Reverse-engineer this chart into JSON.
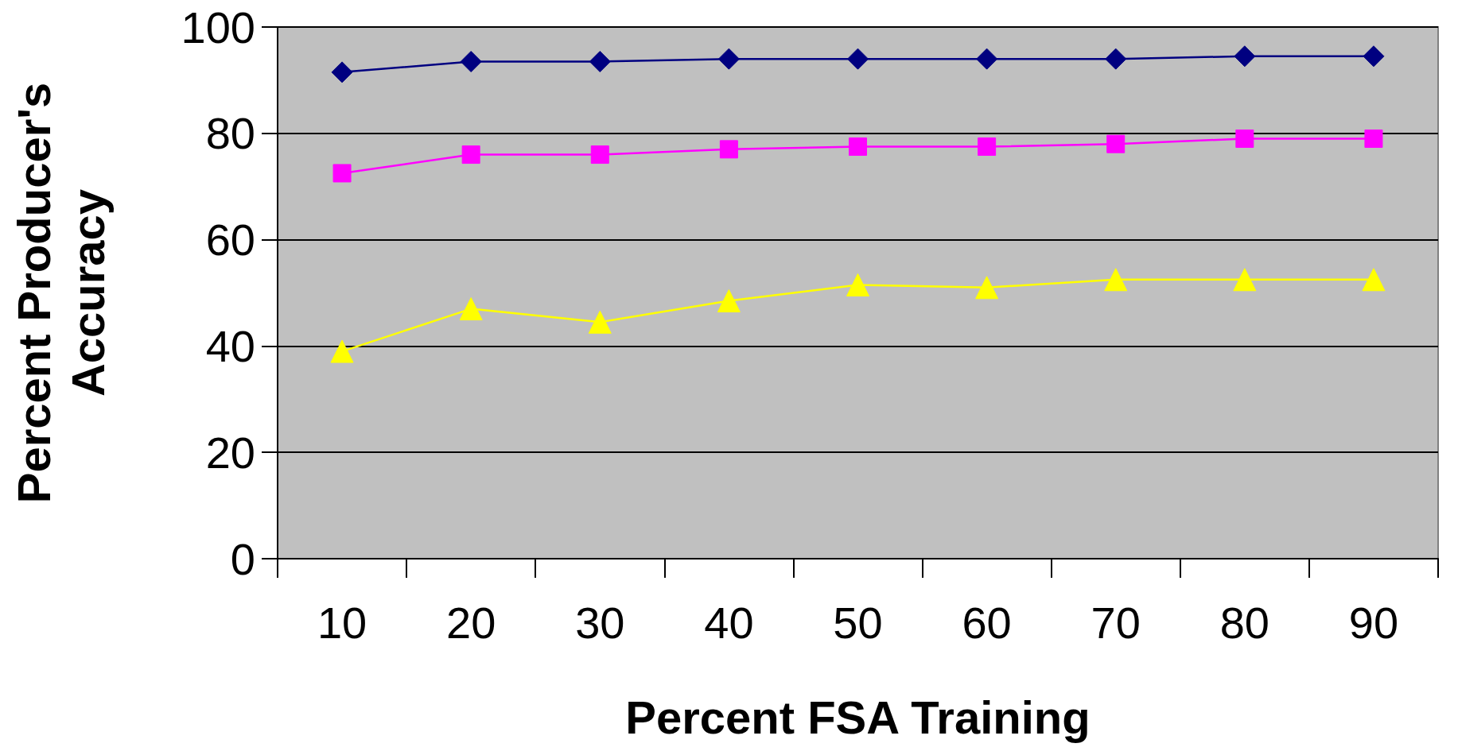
{
  "chart_data": {
    "type": "line",
    "xlabel": "Percent FSA Training",
    "ylabel": "Percent Producer's\nAccuracy",
    "categories": [
      "10",
      "20",
      "30",
      "40",
      "50",
      "60",
      "70",
      "80",
      "90"
    ],
    "series": [
      {
        "color": "#000080",
        "marker": "diamond",
        "values": [
          91.5,
          93.5,
          93.5,
          94,
          94,
          94,
          94,
          94.5,
          94.5
        ]
      },
      {
        "color": "#ff00ff",
        "marker": "square",
        "values": [
          72.5,
          76,
          76,
          77,
          77.5,
          77.5,
          78,
          79,
          79
        ]
      },
      {
        "color": "#ffff00",
        "marker": "triangle",
        "values": [
          39,
          47,
          44.5,
          48.5,
          51.5,
          51,
          52.5,
          52.5,
          52.5
        ]
      }
    ],
    "ylim": [
      0,
      100
    ],
    "yticks": [
      0,
      20,
      40,
      60,
      80,
      100
    ],
    "grid": "y",
    "line_style": "solid"
  }
}
